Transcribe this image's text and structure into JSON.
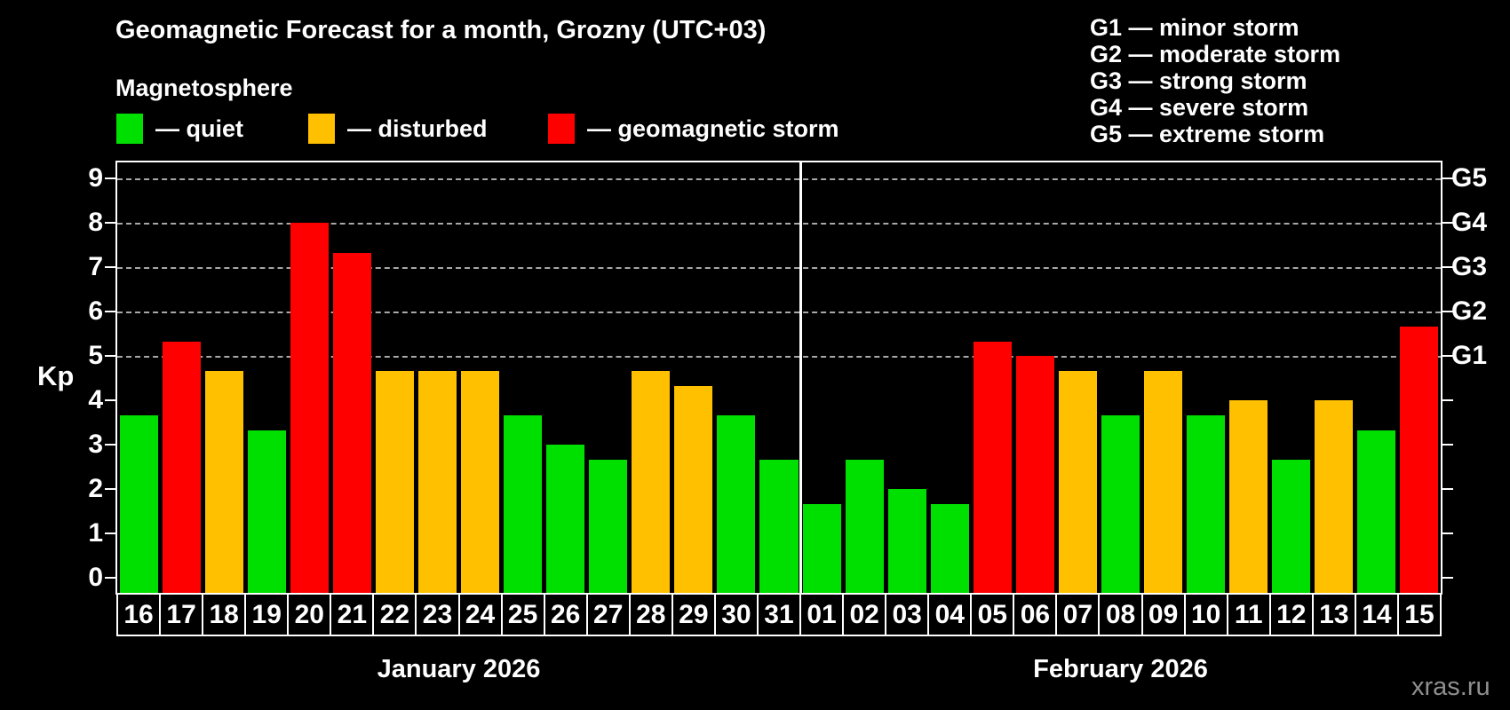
{
  "header": {
    "title": "Geomagnetic Forecast for a month, Grozny (UTC+03)",
    "subtitle": "Magnetosphere",
    "legend": [
      {
        "name": "quiet",
        "label": "— quiet",
        "color": "#00e000"
      },
      {
        "name": "disturbed",
        "label": "— disturbed",
        "color": "#ffc000"
      },
      {
        "name": "storm",
        "label": "— geomagnetic storm",
        "color": "#ff0000"
      }
    ],
    "storm_scale": [
      "G1 — minor storm",
      "G2 — moderate storm",
      "G3 — strong storm",
      "G4 — severe storm",
      "G5 — extreme storm"
    ]
  },
  "colors": {
    "quiet": "#00e000",
    "disturbed": "#ffc000",
    "storm": "#ff0000",
    "grid": "#a8a8a8",
    "axis": "#ffffff",
    "watermark": "#8f8f8f"
  },
  "chart_data": {
    "type": "bar",
    "ylabel": "Kp",
    "ylim": [
      0,
      9
    ],
    "yticks": [
      0,
      1,
      2,
      3,
      4,
      5,
      6,
      7,
      8,
      9
    ],
    "gridlines_at": [
      5,
      6,
      7,
      8,
      9
    ],
    "right_tick_labels": {
      "5": "G1",
      "6": "G2",
      "7": "G3",
      "8": "G4",
      "9": "G5"
    },
    "legend_position": "top-left",
    "grid": "dashed, storm levels only",
    "months": [
      {
        "label": "January 2026",
        "days": [
          {
            "day": "16",
            "kp": 3.67,
            "status": "quiet"
          },
          {
            "day": "17",
            "kp": 5.33,
            "status": "storm"
          },
          {
            "day": "18",
            "kp": 4.67,
            "status": "disturbed"
          },
          {
            "day": "19",
            "kp": 3.33,
            "status": "quiet"
          },
          {
            "day": "20",
            "kp": 8.0,
            "status": "storm"
          },
          {
            "day": "21",
            "kp": 7.33,
            "status": "storm"
          },
          {
            "day": "22",
            "kp": 4.67,
            "status": "disturbed"
          },
          {
            "day": "23",
            "kp": 4.67,
            "status": "disturbed"
          },
          {
            "day": "24",
            "kp": 4.67,
            "status": "disturbed"
          },
          {
            "day": "25",
            "kp": 3.67,
            "status": "quiet"
          },
          {
            "day": "26",
            "kp": 3.0,
            "status": "quiet"
          },
          {
            "day": "27",
            "kp": 2.67,
            "status": "quiet"
          },
          {
            "day": "28",
            "kp": 4.67,
            "status": "disturbed"
          },
          {
            "day": "29",
            "kp": 4.33,
            "status": "disturbed"
          },
          {
            "day": "30",
            "kp": 3.67,
            "status": "quiet"
          },
          {
            "day": "31",
            "kp": 2.67,
            "status": "quiet"
          }
        ]
      },
      {
        "label": "February 2026",
        "days": [
          {
            "day": "01",
            "kp": 1.67,
            "status": "quiet"
          },
          {
            "day": "02",
            "kp": 2.67,
            "status": "quiet"
          },
          {
            "day": "03",
            "kp": 2.0,
            "status": "quiet"
          },
          {
            "day": "04",
            "kp": 1.67,
            "status": "quiet"
          },
          {
            "day": "05",
            "kp": 5.33,
            "status": "storm"
          },
          {
            "day": "06",
            "kp": 5.0,
            "status": "storm"
          },
          {
            "day": "07",
            "kp": 4.67,
            "status": "disturbed"
          },
          {
            "day": "08",
            "kp": 3.67,
            "status": "quiet"
          },
          {
            "day": "09",
            "kp": 4.67,
            "status": "disturbed"
          },
          {
            "day": "10",
            "kp": 3.67,
            "status": "quiet"
          },
          {
            "day": "11",
            "kp": 4.0,
            "status": "disturbed"
          },
          {
            "day": "12",
            "kp": 2.67,
            "status": "quiet"
          },
          {
            "day": "13",
            "kp": 4.0,
            "status": "disturbed"
          },
          {
            "day": "14",
            "kp": 3.33,
            "status": "quiet"
          },
          {
            "day": "15",
            "kp": 5.67,
            "status": "storm"
          }
        ]
      }
    ]
  },
  "watermark": "xras.ru"
}
